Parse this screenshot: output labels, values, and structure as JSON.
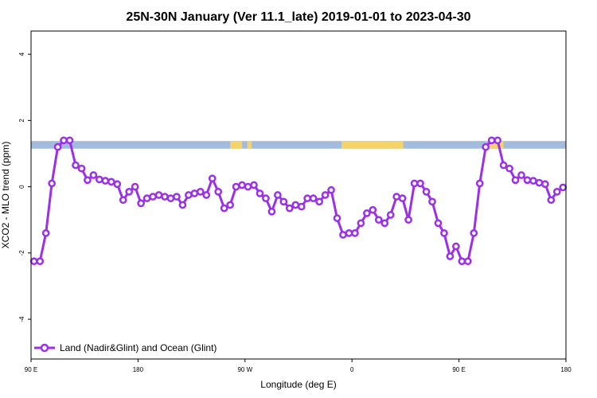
{
  "chart_data": {
    "type": "line",
    "title": "25N-30N January (Ver 11.1_late)   2019-01-01 to 2023-04-30",
    "xlabel": "Longitude (deg E)",
    "ylabel": "XCO2 - MLO trend (ppm)",
    "xlim": [
      90,
      450
    ],
    "ylim": [
      -5.2,
      4.7
    ],
    "x_ticks": [
      {
        "value": 90,
        "label": "90 E"
      },
      {
        "value": 162,
        "label": "180"
      },
      {
        "value": 234,
        "label": "90 W"
      },
      {
        "value": 306,
        "label": "0"
      },
      {
        "value": 378,
        "label": "90 E"
      },
      {
        "value": 450,
        "label": "180"
      }
    ],
    "y_ticks": [
      {
        "value": 4,
        "label": "4"
      },
      {
        "value": 2,
        "label": "2"
      },
      {
        "value": 0,
        "label": "0"
      },
      {
        "value": -2,
        "label": "-2"
      },
      {
        "value": -4,
        "label": "-4"
      }
    ],
    "land_ocean_band": {
      "y_range": [
        1.15,
        1.38
      ],
      "ocean_color": "#a3bbdd",
      "land_color": "#f5d36b",
      "land_spans": [
        [
          224,
          232
        ],
        [
          235.5,
          238.5
        ],
        [
          299,
          334
        ],
        [
          334,
          340.5
        ],
        [
          398,
          408
        ]
      ]
    },
    "legend_position": "bottom-left",
    "series": [
      {
        "name": "Land (Nadir&Glint) and Ocean (Glint)",
        "color": "#9b30e8",
        "x": [
          92,
          96,
          100,
          104,
          108,
          112,
          116,
          120,
          124,
          128,
          132,
          136,
          140,
          144,
          148,
          152,
          156,
          160,
          164,
          168,
          172,
          176,
          180,
          184,
          188,
          192,
          196,
          200,
          204,
          208,
          212,
          216,
          220,
          224,
          228,
          232,
          236,
          240,
          244,
          248,
          252,
          256,
          260,
          264,
          268,
          272,
          276,
          280,
          284,
          288,
          292,
          296,
          300,
          304,
          308,
          312,
          316,
          320,
          324,
          328,
          332,
          336,
          340,
          344,
          348,
          352,
          356,
          360,
          364,
          368,
          372,
          376,
          380,
          384,
          388,
          392,
          396,
          400,
          404,
          408,
          412,
          416,
          420,
          424,
          428,
          432,
          436,
          440,
          444,
          448
        ],
        "y": [
          -2.25,
          -2.25,
          -1.4,
          0.1,
          1.2,
          1.4,
          1.4,
          0.65,
          0.55,
          0.2,
          0.35,
          0.22,
          0.18,
          0.15,
          0.08,
          -0.4,
          -0.15,
          0.0,
          -0.5,
          -0.35,
          -0.3,
          -0.25,
          -0.3,
          -0.35,
          -0.3,
          -0.55,
          -0.25,
          -0.2,
          -0.15,
          -0.25,
          0.25,
          -0.15,
          -0.65,
          -0.55,
          0.0,
          0.05,
          0.0,
          0.05,
          -0.2,
          -0.35,
          -0.75,
          -0.25,
          -0.45,
          -0.65,
          -0.55,
          -0.6,
          -0.35,
          -0.35,
          -0.45,
          -0.25,
          -0.1,
          -0.95,
          -1.45,
          -1.4,
          -1.4,
          -1.1,
          -0.8,
          -0.7,
          -1.0,
          -1.1,
          -0.85,
          -0.3,
          -0.35,
          -1.0,
          0.1,
          0.1,
          -0.15,
          -0.45,
          -1.1,
          -1.4,
          -2.1,
          -1.8,
          -2.25,
          -2.25,
          -1.4,
          0.1,
          1.2,
          1.4,
          1.4,
          0.65,
          0.55,
          0.2,
          0.35,
          0.2,
          0.18,
          0.12,
          0.08,
          -0.4,
          -0.15,
          -0.02
        ]
      }
    ]
  }
}
